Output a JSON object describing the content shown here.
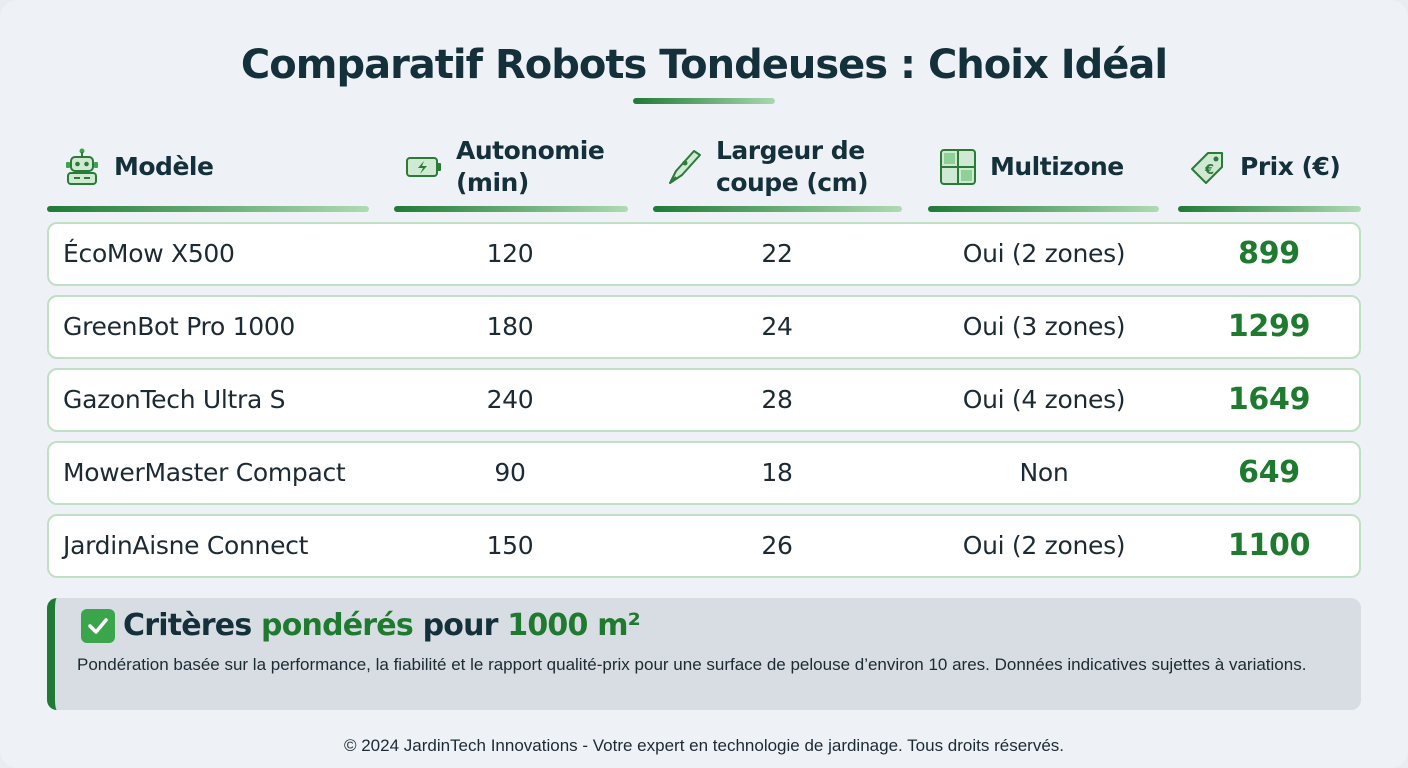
{
  "title": "Comparatif Robots Tondeuses : Choix Idéal",
  "headers": {
    "model": "Modèle",
    "autonomy_l1": "Autonomie",
    "autonomy_l2": "(min)",
    "width_l1": "Largeur de",
    "width_l2": "coupe (cm)",
    "multizone": "Multizone",
    "price": "Prix (€)"
  },
  "icons": {
    "model": "robot-icon",
    "autonomy": "battery-icon",
    "width": "blade-icon",
    "multizone": "zones-map-icon",
    "price": "price-tag-icon"
  },
  "rows": [
    {
      "model": "ÉcoMow X500",
      "autonomy": "120",
      "width": "22",
      "multizone": "Oui (2 zones)",
      "price": "899"
    },
    {
      "model": "GreenBot Pro 1000",
      "autonomy": "180",
      "width": "24",
      "multizone": "Oui (3 zones)",
      "price": "1299"
    },
    {
      "model": "GazonTech Ultra S",
      "autonomy": "240",
      "width": "28",
      "multizone": "Oui (4 zones)",
      "price": "1649"
    },
    {
      "model": "MowerMaster Compact",
      "autonomy": "90",
      "width": "18",
      "multizone": "Non",
      "price": "649"
    },
    {
      "model": "JardinAisne Connect",
      "autonomy": "150",
      "width": "26",
      "multizone": "Oui (2 zones)",
      "price": "1100"
    }
  ],
  "criteria": {
    "t1": "Critères",
    "t2": "pondérés",
    "t3": "pour",
    "t4": "1000 m²",
    "description": "Pondération basée sur la performance, la fiabilité et le rapport qualité-prix pour une surface de pelouse d’environ 10 ares. Données indicatives sujettes à variations."
  },
  "footer": "© 2024 JardinTech Innovations - Votre expert en technologie de jardinage. Tous droits réservés.",
  "colors": {
    "accent": "#1e7a2e",
    "text": "#14303b",
    "row_border": "#bfe0c4"
  }
}
